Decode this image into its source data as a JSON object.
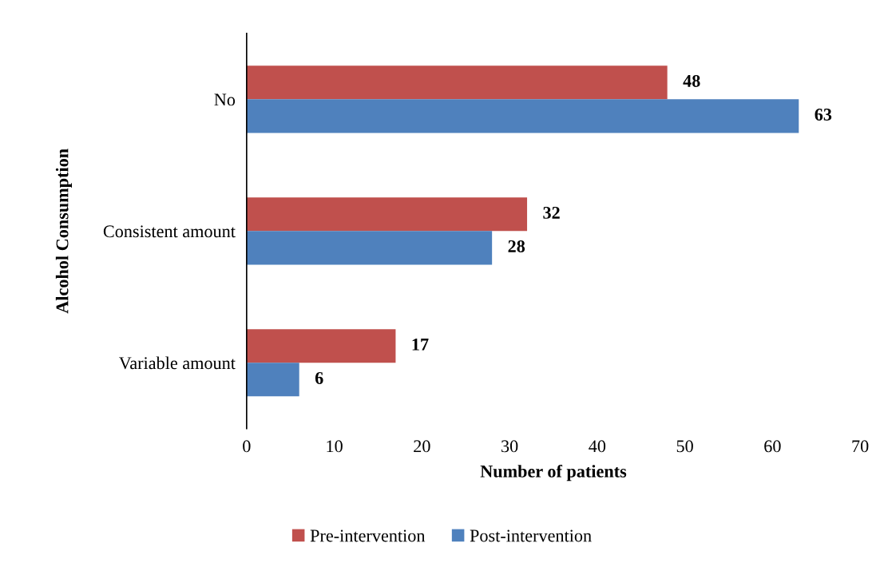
{
  "chart_data": {
    "type": "bar",
    "orientation": "horizontal",
    "categories": [
      "No",
      "Consistent amount",
      "Variable amount"
    ],
    "series": [
      {
        "name": "Pre-intervention",
        "color": "#c0504d",
        "values": [
          48,
          32,
          17
        ]
      },
      {
        "name": "Post-intervention",
        "color": "#4f81bd",
        "values": [
          63,
          28,
          6
        ]
      }
    ],
    "xlabel": "Number of patients",
    "ylabel": "Alcohol Consumption",
    "xlim": [
      0,
      70
    ],
    "xticks": [
      0,
      10,
      20,
      30,
      40,
      50,
      60,
      70
    ],
    "data_labels": true,
    "grid": false,
    "legend": "bottom"
  }
}
